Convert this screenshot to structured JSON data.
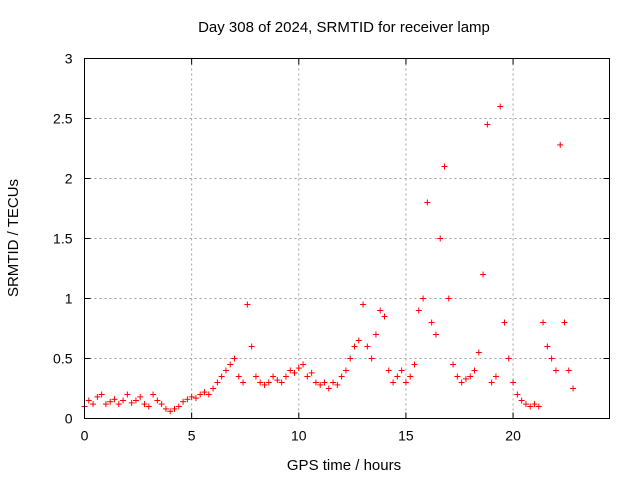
{
  "chart_data": {
    "type": "scatter",
    "title": "Day 308 of 2024, SRMTID for receiver lamp",
    "xlabel": "GPS time / hours",
    "ylabel": "SRMTID / TECUs",
    "xlim": [
      0,
      24.5
    ],
    "ylim": [
      0,
      3
    ],
    "xticks": [
      0,
      5,
      10,
      15,
      20
    ],
    "xtick_labels": [
      "0",
      "5",
      "10",
      "15",
      "20"
    ],
    "yticks": [
      0,
      0.5,
      1,
      1.5,
      2,
      2.5,
      3
    ],
    "ytick_labels": [
      "0",
      "0.5",
      "1",
      "1.5",
      "2",
      "2.5",
      "3"
    ],
    "grid": true,
    "marker": "+",
    "color": "#ff0000",
    "series": [
      {
        "name": "SRMTID",
        "x": [
          0.0,
          0.2,
          0.4,
          0.6,
          0.8,
          1.0,
          1.2,
          1.4,
          1.6,
          1.8,
          2.0,
          2.2,
          2.4,
          2.6,
          2.8,
          3.0,
          3.2,
          3.4,
          3.6,
          3.8,
          4.0,
          4.2,
          4.4,
          4.6,
          4.8,
          5.0,
          5.2,
          5.4,
          5.6,
          5.8,
          6.0,
          6.2,
          6.4,
          6.6,
          6.8,
          7.0,
          7.2,
          7.4,
          7.6,
          7.8,
          8.0,
          8.2,
          8.4,
          8.6,
          8.8,
          9.0,
          9.2,
          9.4,
          9.6,
          9.8,
          10.0,
          10.2,
          10.4,
          10.6,
          10.8,
          11.0,
          11.2,
          11.4,
          11.6,
          11.8,
          12.0,
          12.2,
          12.4,
          12.6,
          12.8,
          13.0,
          13.2,
          13.4,
          13.6,
          13.8,
          14.0,
          14.2,
          14.4,
          14.6,
          14.8,
          15.0,
          15.2,
          15.4,
          15.6,
          15.8,
          16.0,
          16.2,
          16.4,
          16.6,
          16.8,
          17.0,
          17.2,
          17.4,
          17.6,
          17.8,
          18.0,
          18.2,
          18.4,
          18.6,
          18.8,
          19.0,
          19.2,
          19.4,
          19.6,
          19.8,
          20.0,
          20.2,
          20.4,
          20.6,
          20.8,
          21.0,
          21.2,
          21.4,
          21.6,
          21.8,
          22.0,
          22.2,
          22.4,
          22.6,
          22.8
        ],
        "y": [
          0.1,
          0.15,
          0.12,
          0.18,
          0.2,
          0.12,
          0.14,
          0.16,
          0.12,
          0.15,
          0.2,
          0.13,
          0.15,
          0.18,
          0.12,
          0.1,
          0.2,
          0.15,
          0.12,
          0.08,
          0.06,
          0.08,
          0.1,
          0.14,
          0.16,
          0.18,
          0.17,
          0.2,
          0.22,
          0.2,
          0.25,
          0.3,
          0.35,
          0.4,
          0.45,
          0.5,
          0.35,
          0.3,
          0.95,
          0.6,
          0.35,
          0.3,
          0.28,
          0.3,
          0.35,
          0.32,
          0.3,
          0.35,
          0.4,
          0.38,
          0.42,
          0.45,
          0.35,
          0.38,
          0.3,
          0.28,
          0.3,
          0.25,
          0.3,
          0.28,
          0.35,
          0.4,
          0.5,
          0.6,
          0.65,
          0.95,
          0.6,
          0.5,
          0.7,
          0.9,
          0.85,
          0.4,
          0.3,
          0.35,
          0.4,
          0.3,
          0.35,
          0.45,
          0.9,
          1.0,
          1.8,
          0.8,
          0.7,
          1.5,
          2.1,
          1.0,
          0.45,
          0.35,
          0.3,
          0.33,
          0.35,
          0.4,
          0.55,
          1.2,
          2.45,
          0.3,
          0.35,
          2.6,
          0.8,
          0.5,
          0.3,
          0.2,
          0.15,
          0.12,
          0.1,
          0.12,
          0.1,
          0.8,
          0.6,
          0.5,
          0.4,
          2.28,
          0.8,
          0.4,
          0.25
        ]
      }
    ]
  }
}
